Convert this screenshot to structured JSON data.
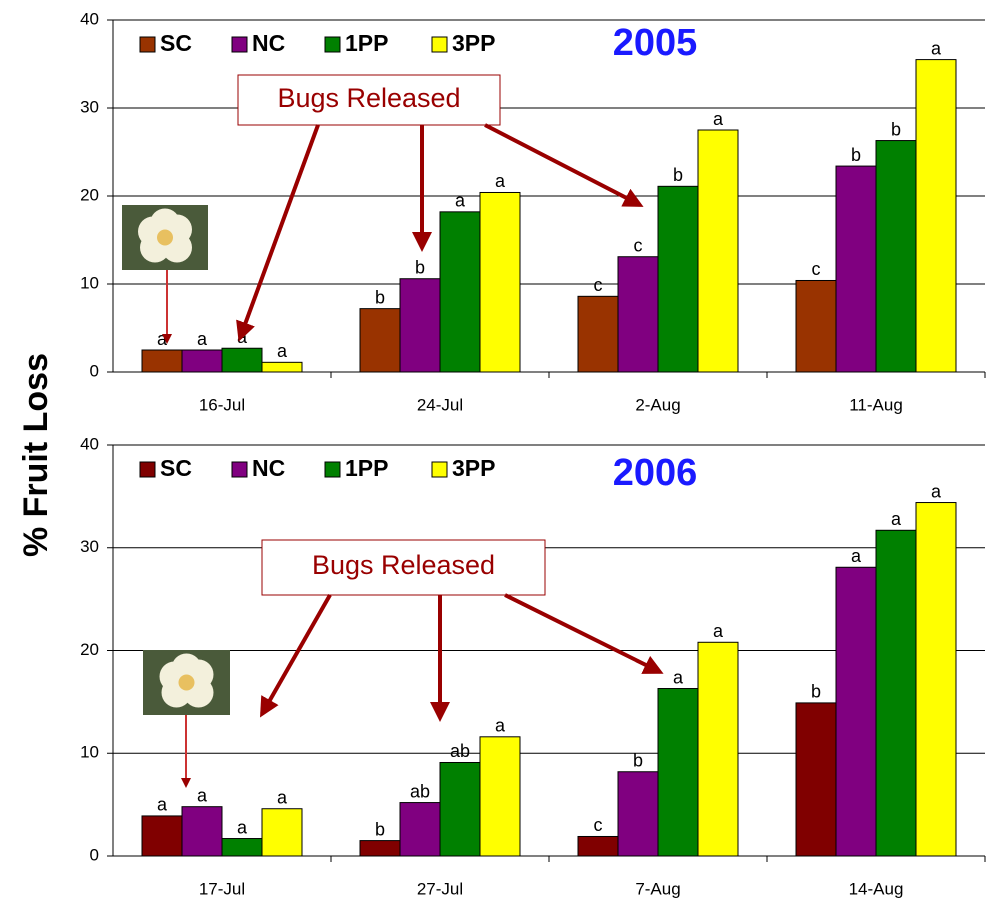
{
  "ylabel": "% Fruit Loss",
  "chart_data": [
    {
      "type": "bar",
      "title": "2005",
      "annotation": "Bugs Released",
      "categories": [
        "16-Jul",
        "24-Jul",
        "2-Aug",
        "11-Aug"
      ],
      "series": [
        {
          "name": "SC",
          "color": "#993300",
          "values": [
            2.5,
            7.2,
            8.6,
            10.4
          ],
          "letters": [
            "a",
            "b",
            "c",
            "c"
          ]
        },
        {
          "name": "NC",
          "color": "#800080",
          "values": [
            2.5,
            10.6,
            13.1,
            23.4
          ],
          "letters": [
            "a",
            "b",
            "c",
            "b"
          ]
        },
        {
          "name": "1PP",
          "color": "#008000",
          "values": [
            2.7,
            18.2,
            21.1,
            26.3
          ],
          "letters": [
            "a",
            "a",
            "b",
            "b"
          ]
        },
        {
          "name": "3PP",
          "color": "#ffff00",
          "values": [
            1.1,
            20.4,
            27.5,
            35.5
          ],
          "letters": [
            "a",
            "a",
            "a",
            "a"
          ]
        }
      ],
      "ylim": [
        0,
        40
      ],
      "yticks": [
        0,
        10,
        20,
        30,
        40
      ],
      "grid": true
    },
    {
      "type": "bar",
      "title": "2006",
      "annotation": "Bugs Released",
      "categories": [
        "17-Jul",
        "27-Jul",
        "7-Aug",
        "14-Aug"
      ],
      "series": [
        {
          "name": "SC",
          "color": "#800000",
          "values": [
            3.9,
            1.5,
            1.9,
            14.9
          ],
          "letters": [
            "a",
            "b",
            "c",
            "b"
          ]
        },
        {
          "name": "NC",
          "color": "#800080",
          "values": [
            4.8,
            5.2,
            8.2,
            28.1
          ],
          "letters": [
            "a",
            "ab",
            "b",
            "a"
          ]
        },
        {
          "name": "1PP",
          "color": "#008000",
          "values": [
            1.7,
            9.1,
            16.3,
            31.7
          ],
          "letters": [
            "a",
            "ab",
            "a",
            "a"
          ]
        },
        {
          "name": "3PP",
          "color": "#ffff00",
          "values": [
            4.6,
            11.6,
            20.8,
            34.4
          ],
          "letters": [
            "a",
            "a",
            "a",
            "a"
          ]
        }
      ],
      "ylim": [
        0,
        40
      ],
      "yticks": [
        0,
        10,
        20,
        30,
        40
      ],
      "grid": true
    }
  ]
}
